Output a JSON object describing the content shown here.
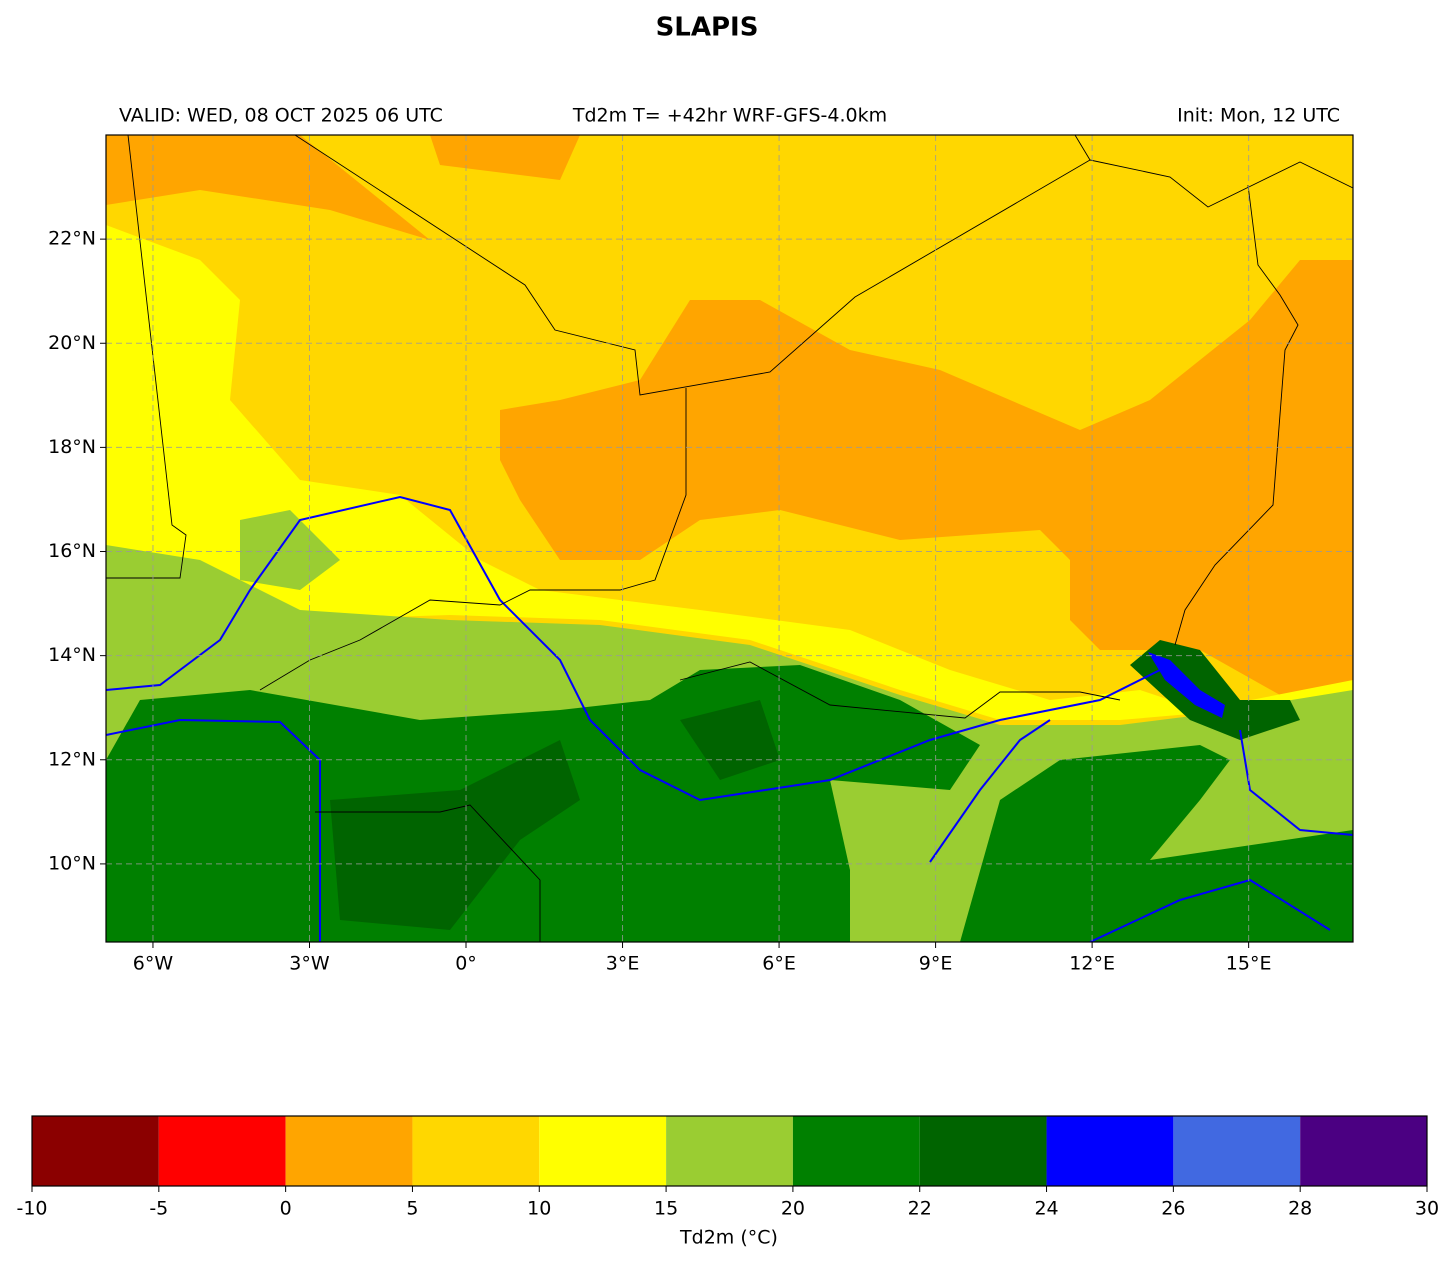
{
  "title": "SLAPIS",
  "subtitle_left": "VALID: WED, 08 OCT 2025 06 UTC",
  "subtitle_center": "Td2m T= +42hr WRF-GFS-4.0km",
  "subtitle_right": "Init: Mon, 12 UTC",
  "map": {
    "xlim": [
      -6.9,
      17.0
    ],
    "ylim": [
      8.5,
      24.0
    ],
    "grid": true,
    "xticks": [
      {
        "value": -6,
        "label": "6°W"
      },
      {
        "value": -3,
        "label": "3°W"
      },
      {
        "value": 0,
        "label": "0°"
      },
      {
        "value": 3,
        "label": "3°E"
      },
      {
        "value": 6,
        "label": "6°E"
      },
      {
        "value": 9,
        "label": "9°E"
      },
      {
        "value": 12,
        "label": "12°E"
      },
      {
        "value": 15,
        "label": "15°E"
      }
    ],
    "yticks": [
      {
        "value": 10,
        "label": "10°N"
      },
      {
        "value": 12,
        "label": "12°N"
      },
      {
        "value": 14,
        "label": "14°N"
      },
      {
        "value": 16,
        "label": "16°N"
      },
      {
        "value": 18,
        "label": "18°N"
      },
      {
        "value": 20,
        "label": "20°N"
      },
      {
        "value": 22,
        "label": "22°N"
      }
    ]
  },
  "colorbar": {
    "label": "Td2m (°C)",
    "boundaries": [
      -10,
      -5,
      0,
      5,
      10,
      15,
      20,
      22,
      24,
      26,
      28,
      30
    ],
    "colors": [
      "#8b0000",
      "#ff0000",
      "#ffa500",
      "#ffd700",
      "#ffff00",
      "#9acd32",
      "#008000",
      "#006400",
      "#0000ff",
      "#4169e1",
      "#4b0082"
    ]
  }
}
